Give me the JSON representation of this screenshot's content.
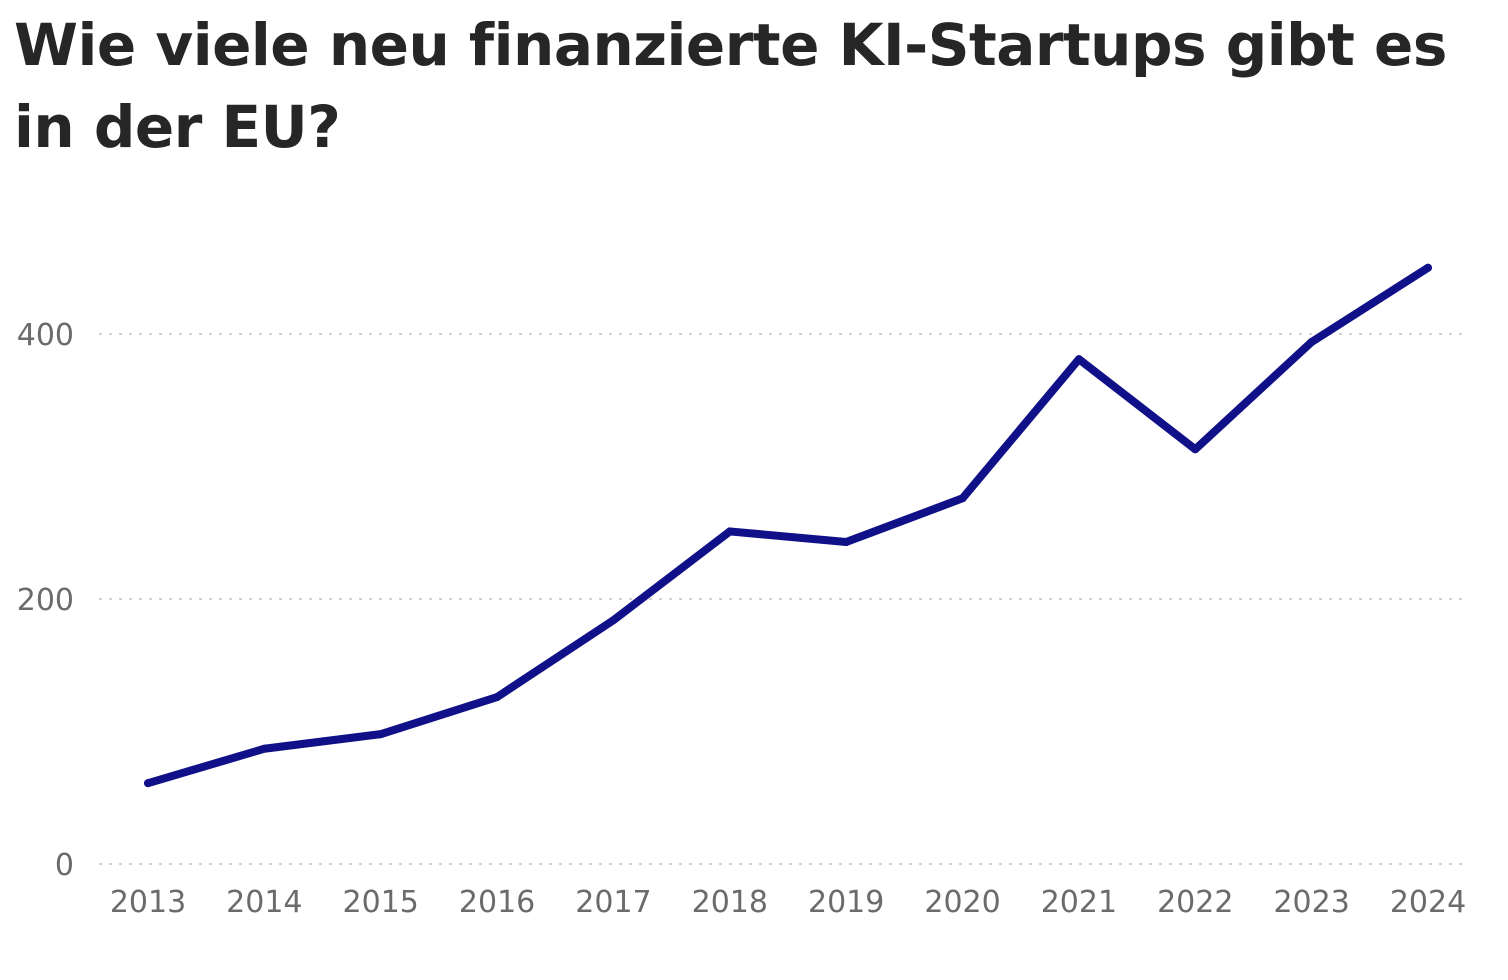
{
  "chart_data": {
    "type": "line",
    "title": "Wie viele neu finanzierte KI-Startups gibt es in der EU?",
    "xlabel": "",
    "ylabel": "",
    "x": [
      "2013",
      "2014",
      "2015",
      "2016",
      "2017",
      "2018",
      "2019",
      "2020",
      "2021",
      "2022",
      "2023",
      "2024"
    ],
    "series": [
      {
        "values": [
          61,
          87,
          98,
          126,
          184,
          251,
          243,
          276,
          381,
          313,
          394,
          450
        ],
        "color": "#101088"
      }
    ],
    "ylim": [
      0,
      450
    ],
    "yticks": [
      "0",
      "200",
      "400"
    ],
    "grid": true,
    "legend": "none"
  }
}
